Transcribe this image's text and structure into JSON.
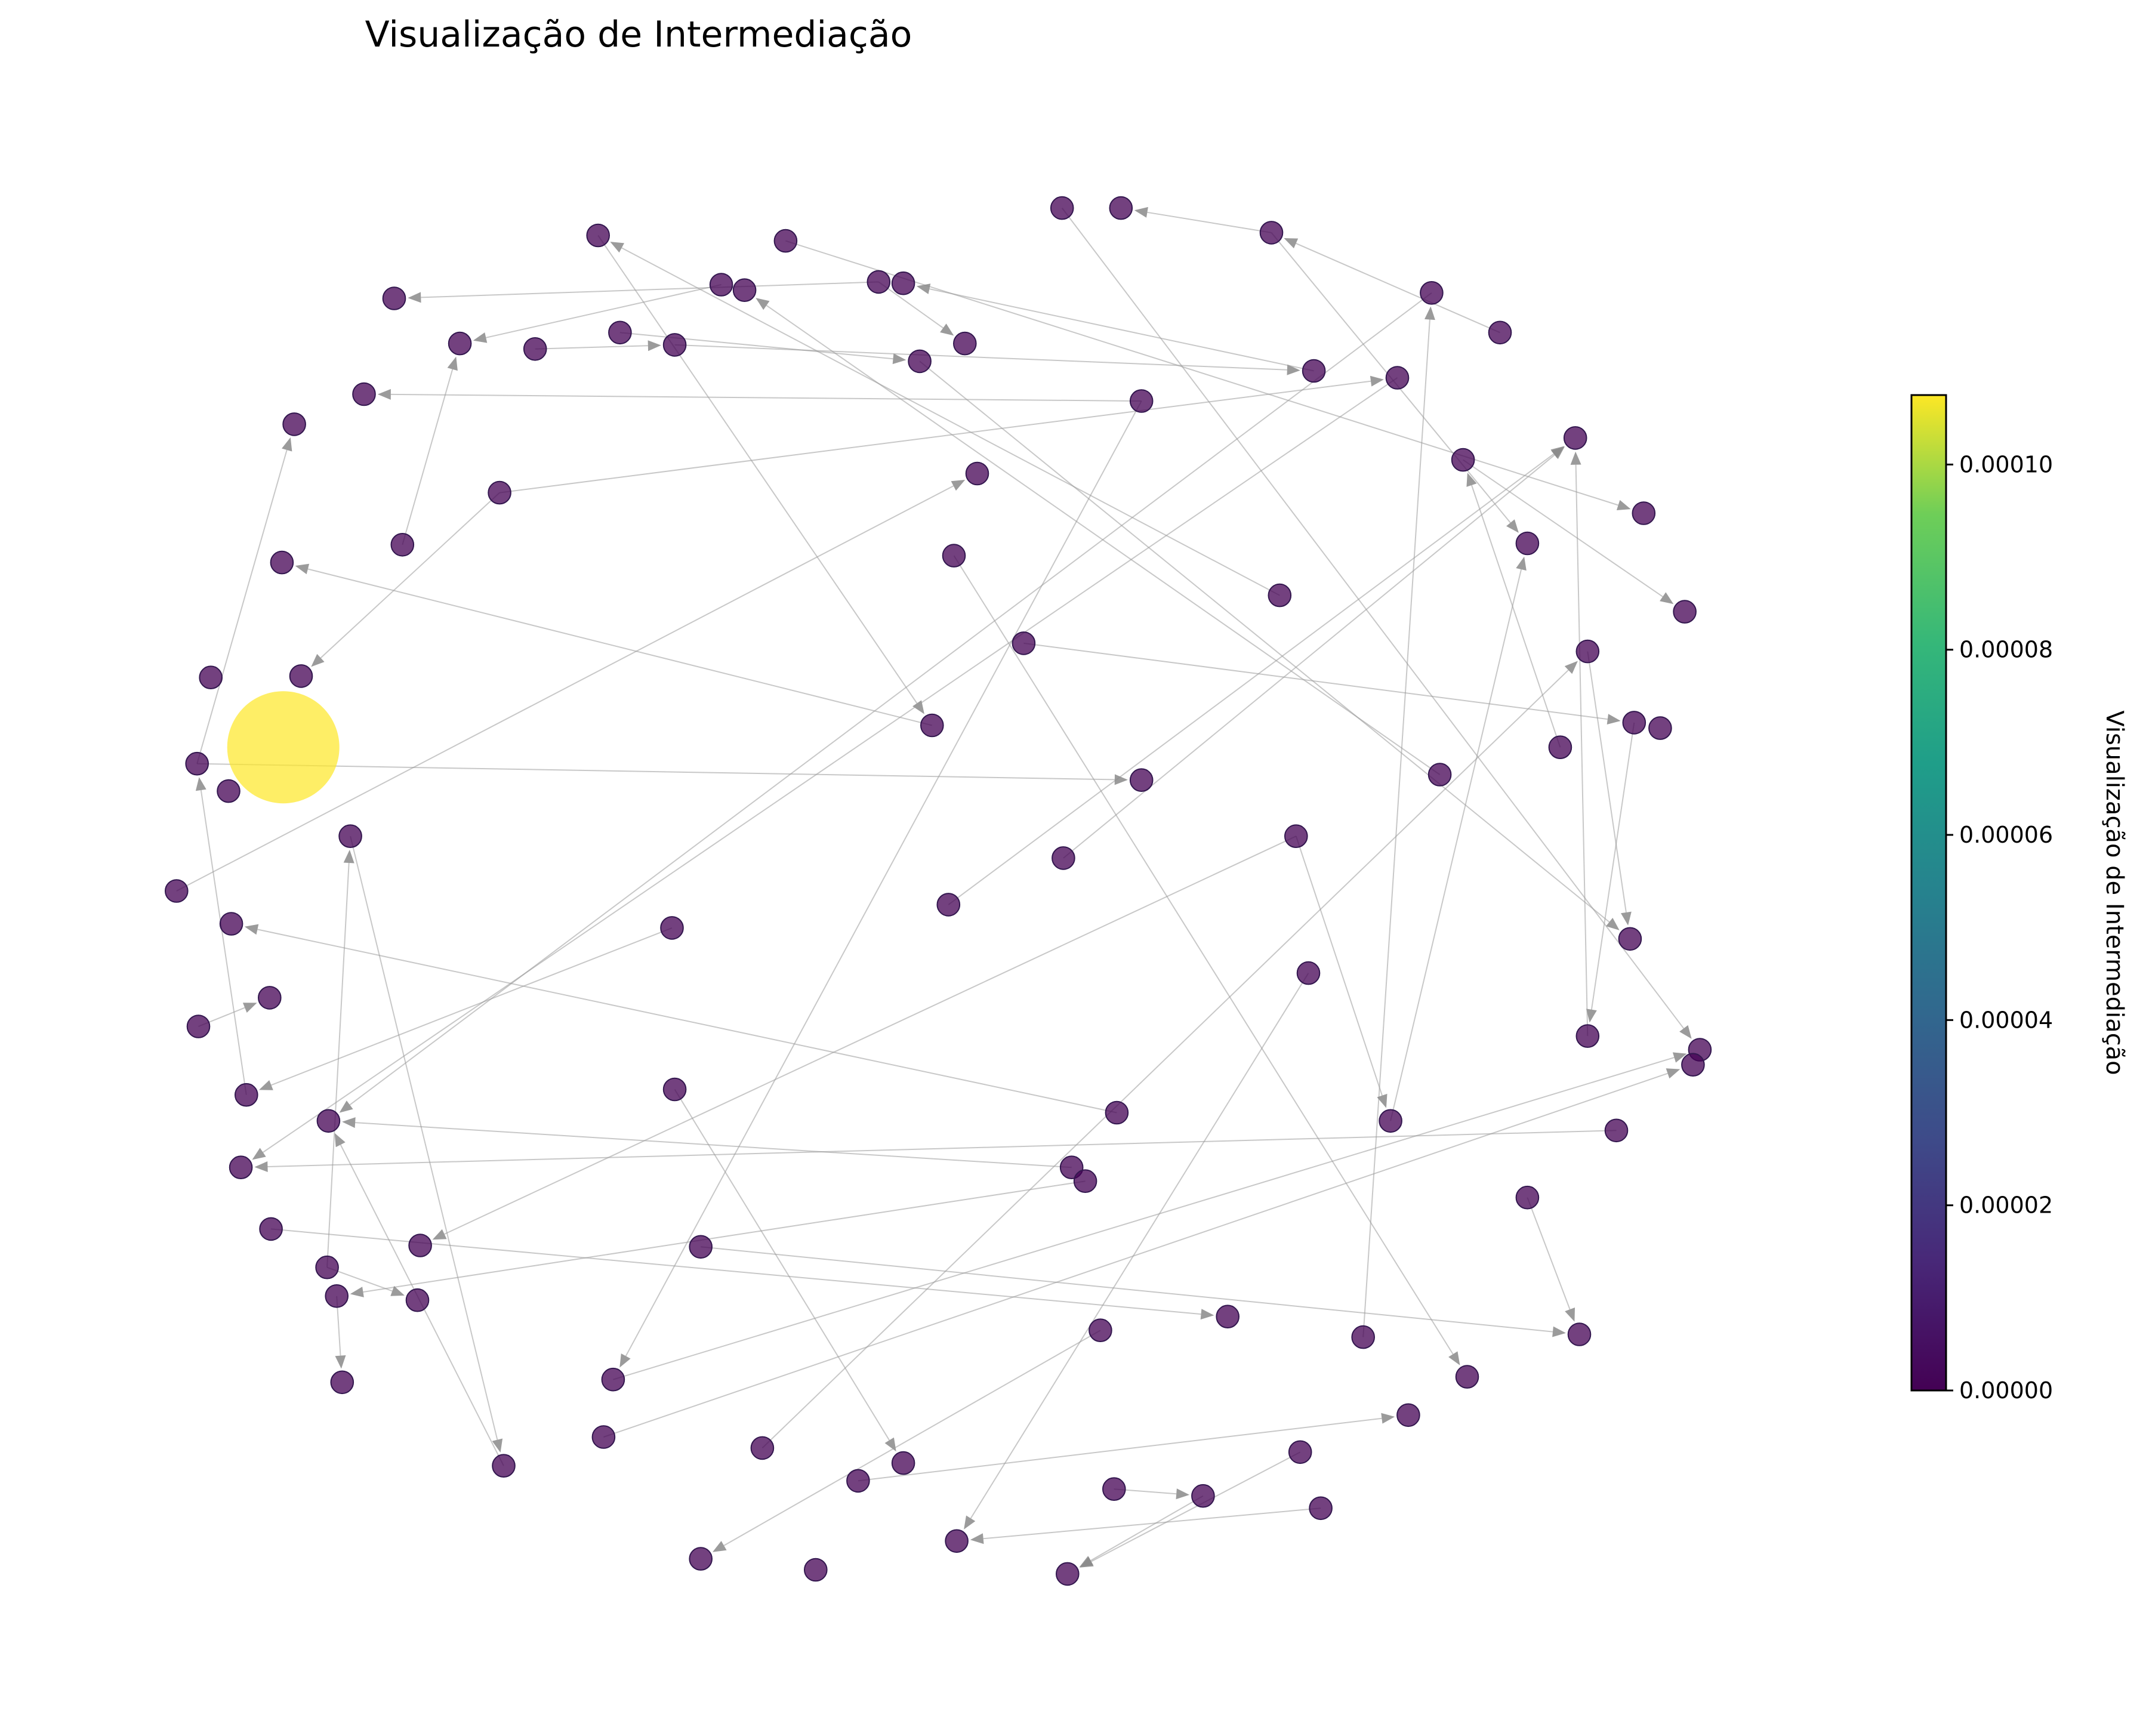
{
  "title": "Visualização de Intermediação",
  "colorbar": {
    "label": "Visualização de Intermediação",
    "min": 0,
    "max": 0.0001075,
    "ticks": [
      {
        "value": 0.0,
        "label": "0.00000"
      },
      {
        "value": 2e-05,
        "label": "0.00002"
      },
      {
        "value": 4e-05,
        "label": "0.00004"
      },
      {
        "value": 6e-05,
        "label": "0.00006"
      },
      {
        "value": 8e-05,
        "label": "0.00008"
      },
      {
        "value": 0.0001,
        "label": "0.00010"
      }
    ],
    "colormap": "viridis",
    "colormap_colors": [
      "#440154",
      "#414487",
      "#2a788e",
      "#22a884",
      "#7ad151",
      "#fde725"
    ]
  },
  "colors": {
    "low_node": "#440154",
    "high_node": "#fde725",
    "edge": "#9a9a9a"
  }
}
